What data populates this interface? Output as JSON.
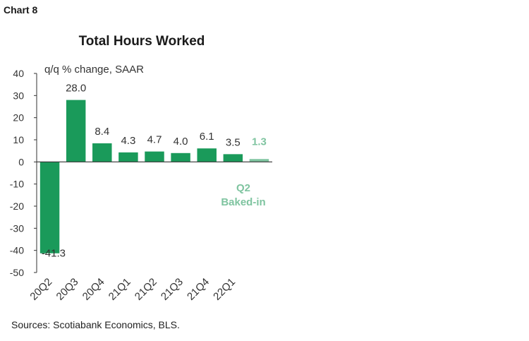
{
  "chart_label": "Chart 8",
  "source": "Sources: Scotiabank Economics, BLS.",
  "colors": {
    "bar": "#1a9a5a",
    "baked": "#7fc4a0",
    "axis": "#333333"
  },
  "chart_data": {
    "type": "bar",
    "title": "Total Hours Worked",
    "ylabel": "q/q % change, SAAR",
    "ylim": [
      -50,
      40
    ],
    "yticks": [
      40,
      30,
      20,
      10,
      0,
      -10,
      -20,
      -30,
      -40,
      -50
    ],
    "categories": [
      "20Q2",
      "20Q3",
      "20Q4",
      "21Q1",
      "21Q2",
      "21Q3",
      "21Q4",
      "22Q1",
      ""
    ],
    "values": [
      -41.3,
      28.0,
      8.4,
      4.3,
      4.7,
      4.0,
      6.1,
      3.5,
      1.3
    ],
    "value_labels": [
      "-41.3",
      "28.0",
      "8.4",
      "4.3",
      "4.7",
      "4.0",
      "6.1",
      "3.5",
      "1.3"
    ],
    "annotation": {
      "line1": "Q2",
      "line2": "Baked-in"
    }
  }
}
